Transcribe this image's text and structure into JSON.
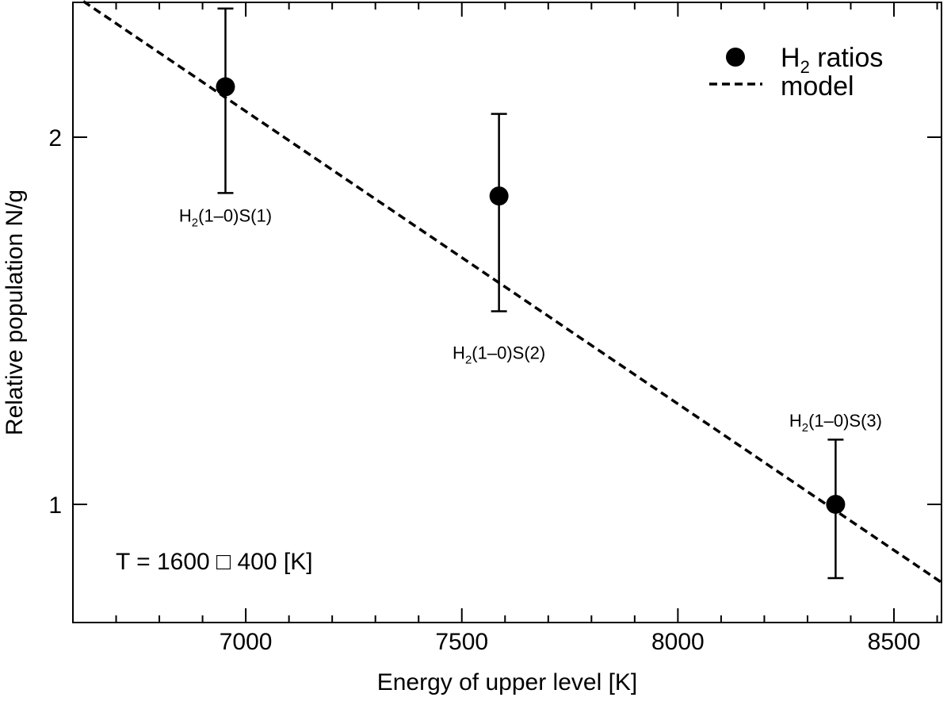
{
  "chart_data": {
    "type": "scatter",
    "title": "",
    "xlabel": "Energy of upper level [K]",
    "ylabel": "Relative population  N/g",
    "xlim": [
      6600,
      8610
    ],
    "ylim": [
      0.8,
      2.58
    ],
    "y_scale": "log",
    "x_ticks": [
      7000,
      7500,
      8000,
      8500
    ],
    "x_tick_labels": [
      "7000",
      "7500",
      "8000",
      "8500"
    ],
    "x_minor_step": 100,
    "y_ticks": [
      1,
      2
    ],
    "y_tick_labels": [
      "1",
      "2"
    ],
    "grid": false,
    "legend_position": "top-right",
    "series": [
      {
        "name": "ratios",
        "kind": "points",
        "points": [
          {
            "x": 6953,
            "y": 2.2,
            "err_low": 1.8,
            "err_high": 2.55,
            "label_base": "H",
            "label_sub": "2",
            "label_rest": "(1–0)S(1)"
          },
          {
            "x": 7586,
            "y": 1.79,
            "err_low": 1.44,
            "err_high": 2.09,
            "label_base": "H",
            "label_sub": "2",
            "label_rest": "(1–0)S(2)"
          },
          {
            "x": 8365,
            "y": 1.0,
            "err_low": 0.87,
            "err_high": 1.13,
            "label_base": "H",
            "label_sub": "2",
            "label_rest": "(1–0)S(3)"
          }
        ]
      },
      {
        "name": "model",
        "kind": "dashed-line",
        "x": [
          6600,
          8610
        ],
        "y": [
          2.62,
          0.863
        ]
      }
    ],
    "legend": [
      {
        "text_base": "H",
        "text_sub": "2",
        "text_rest": " ratios",
        "marker": "circle"
      },
      {
        "text_base": "model",
        "text_sub": "",
        "text_rest": "",
        "marker": "dashed-line"
      }
    ],
    "annotation": "T = 1600 □ 400 [K]"
  }
}
